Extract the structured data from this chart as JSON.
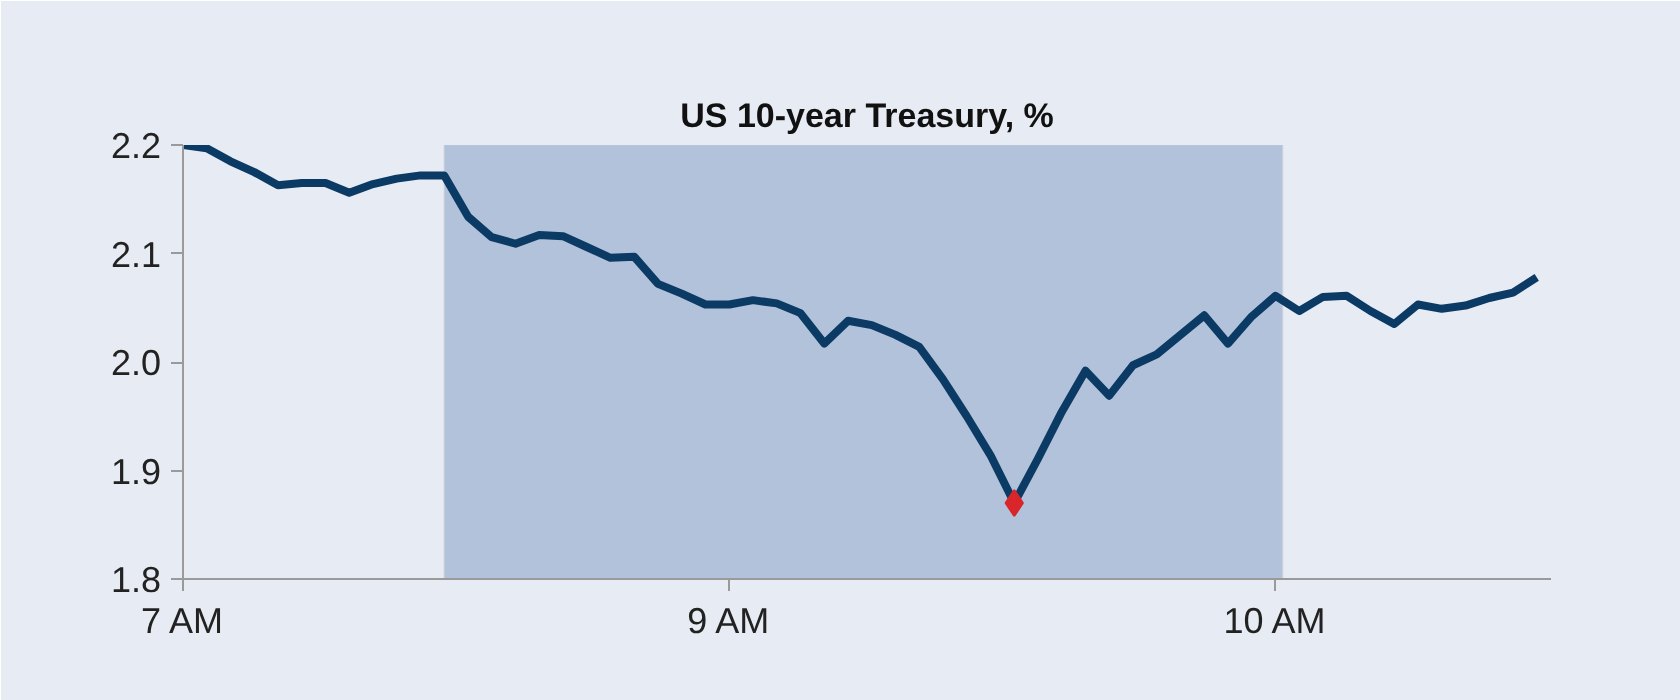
{
  "chart_data": {
    "type": "line",
    "title": "US 10-year Treasury, %",
    "categories": [
      "7 AM",
      null,
      null,
      null,
      null,
      null,
      null,
      null,
      null,
      null,
      null,
      null,
      null,
      null,
      null,
      null,
      null,
      null,
      null,
      null,
      null,
      null,
      null,
      "9 AM",
      null,
      null,
      null,
      null,
      null,
      null,
      null,
      null,
      null,
      null,
      null,
      null,
      null,
      null,
      null,
      null,
      null,
      null,
      null,
      null,
      null,
      null,
      "10 AM",
      null,
      null,
      null,
      null,
      null,
      null,
      null,
      null,
      null,
      null,
      null
    ],
    "ylim": [
      1.8,
      2.2
    ],
    "yticks": [
      1.8,
      1.9,
      {
        "value": 2.0,
        "label": "2.0"
      },
      2.1,
      2.2
    ],
    "grid": false,
    "marker": "none",
    "line_style": "solid",
    "series": [
      {
        "color": "#0b3a64",
        "values": [
          2.2,
          2.197,
          2.185,
          2.175,
          2.163,
          2.165,
          2.165,
          2.156,
          2.164,
          2.169,
          2.172,
          2.172,
          2.134,
          2.115,
          2.109,
          2.117,
          2.116,
          2.106,
          2.096,
          2.097,
          2.072,
          2.063,
          2.053,
          2.053,
          2.057,
          2.054,
          2.045,
          2.017,
          2.038,
          2.034,
          2.025,
          2.014,
          1.984,
          1.95,
          1.914,
          1.87,
          1.911,
          1.954,
          1.992,
          1.969,
          1.997,
          2.007,
          2.025,
          2.043,
          2.017,
          2.042,
          2.061,
          2.047,
          2.06,
          2.061,
          2.047,
          2.035,
          2.053,
          2.049,
          2.052,
          2.059,
          2.064,
          2.078
        ]
      },
      {
        "type": "scatter",
        "color": "#d8262b",
        "marker": "diamond",
        "values": [
          null,
          null,
          null,
          null,
          null,
          null,
          null,
          null,
          null,
          null,
          null,
          null,
          null,
          null,
          null,
          null,
          null,
          null,
          null,
          null,
          null,
          null,
          null,
          null,
          null,
          null,
          null,
          null,
          null,
          null,
          null,
          null,
          null,
          null,
          null,
          1.87,
          null,
          null,
          null,
          null,
          null,
          null,
          null,
          null,
          null,
          null,
          null,
          null,
          null,
          null,
          null,
          null,
          null,
          null,
          null,
          null,
          null,
          null
        ]
      }
    ]
  }
}
